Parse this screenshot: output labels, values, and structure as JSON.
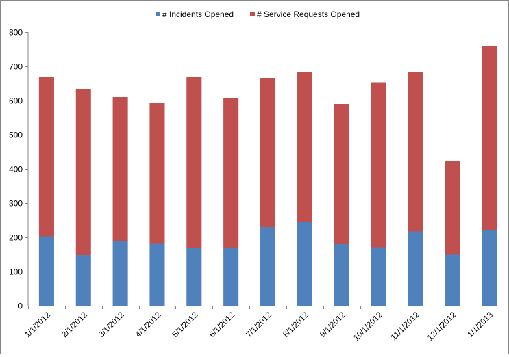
{
  "chart_data": {
    "type": "bar",
    "stacked": true,
    "title": "",
    "xlabel": "",
    "ylabel": "",
    "categories": [
      "1/1/2012",
      "2/1/2012",
      "3/1/2012",
      "4/1/2012",
      "5/1/2012",
      "6/1/2012",
      "7/1/2012",
      "8/1/2012",
      "9/1/2012",
      "10/1/2012",
      "11/1/2012",
      "12/1/2012",
      "1/1/2013"
    ],
    "series": [
      {
        "name": "# Incidents Opened",
        "color": "#4f81bd",
        "values": [
          203,
          148,
          190,
          181,
          168,
          168,
          230,
          245,
          180,
          171,
          217,
          149,
          222
        ]
      },
      {
        "name": "# Service Requests Opened",
        "color": "#c0504d",
        "values": [
          467,
          486,
          420,
          412,
          502,
          438,
          436,
          439,
          410,
          482,
          465,
          274,
          538
        ]
      }
    ],
    "ylim": [
      0,
      800
    ],
    "yticks": [
      0,
      100,
      200,
      300,
      400,
      500,
      600,
      700,
      800
    ],
    "grid": false,
    "legend_position": "top"
  }
}
